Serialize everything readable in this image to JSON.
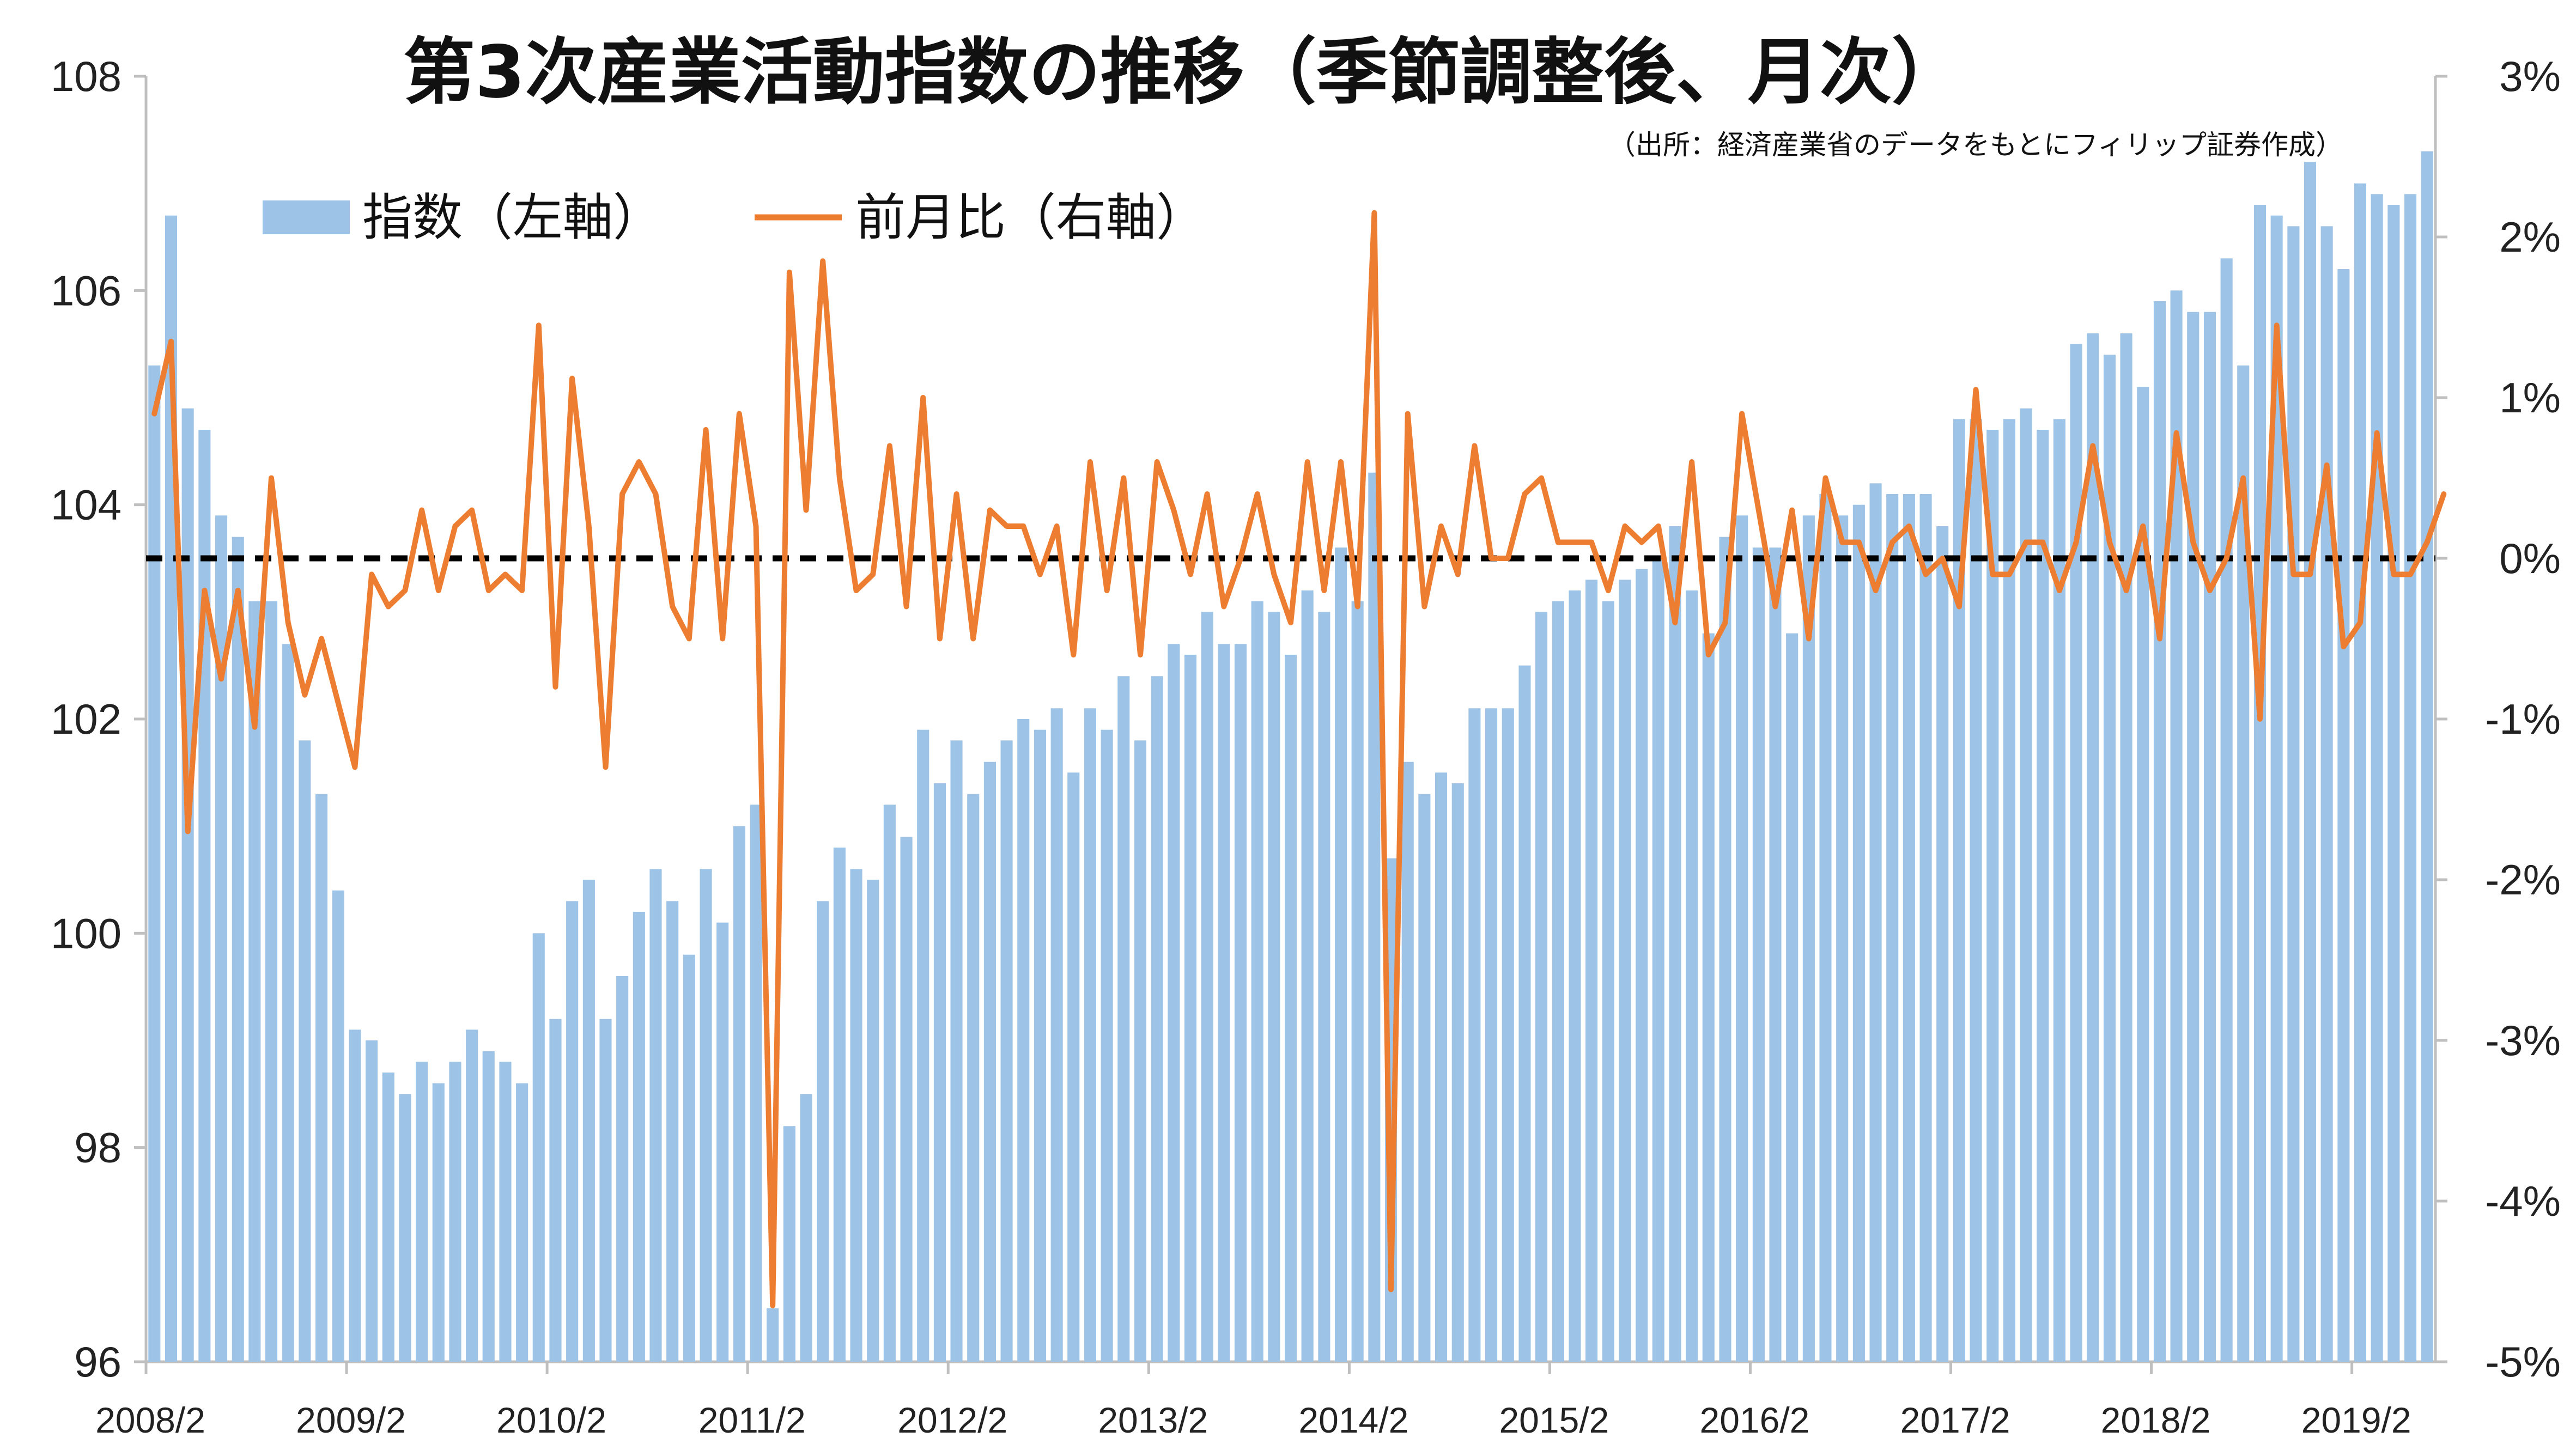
{
  "chart_data": {
    "type": "bar+line",
    "title": "第3次産業活動指数の推移（季節調整後、月次）",
    "source": "（出所：経済産業省のデータをもとにフィリップ証券作成）",
    "legend": {
      "placement": "top-left",
      "items": [
        {
          "label": "指数（左軸）",
          "kind": "bar"
        },
        {
          "label": "前月比（右軸）",
          "kind": "line"
        }
      ]
    },
    "x_tick_labels": [
      "2008/2",
      "2009/2",
      "2010/2",
      "2011/2",
      "2012/2",
      "2013/2",
      "2014/2",
      "2015/2",
      "2016/2",
      "2017/2",
      "2018/2",
      "2019/2"
    ],
    "left_axis": {
      "min": 96,
      "max": 108,
      "step": 2,
      "ticks": [
        "96",
        "98",
        "100",
        "102",
        "104",
        "106",
        "108"
      ]
    },
    "right_axis": {
      "min": -5,
      "max": 3,
      "step": 1,
      "ticks": [
        "-5%",
        "-4%",
        "-3%",
        "-2%",
        "-1%",
        "0%",
        "1%",
        "2%",
        "3%"
      ]
    },
    "zero_line": {
      "value": 0,
      "style": "dashed"
    },
    "colors": {
      "bar": "#9dc3e6",
      "line": "#ed7d31",
      "axis": "#bfbfbf",
      "zero_line": "#000000"
    },
    "series": [
      {
        "name": "指数（左軸）",
        "axis": "left",
        "values": [
          105.3,
          106.7,
          104.9,
          104.7,
          103.9,
          103.7,
          103.1,
          103.1,
          102.7,
          101.8,
          101.3,
          100.4,
          99.1,
          99.0,
          98.7,
          98.5,
          98.8,
          98.6,
          98.8,
          99.1,
          98.9,
          98.8,
          98.6,
          100.0,
          99.2,
          100.3,
          100.5,
          99.2,
          99.6,
          100.2,
          100.6,
          100.3,
          99.8,
          100.6,
          100.1,
          101.0,
          101.2,
          96.5,
          98.2,
          98.5,
          100.3,
          100.8,
          100.6,
          100.5,
          101.2,
          100.9,
          101.9,
          101.4,
          101.8,
          101.3,
          101.6,
          101.8,
          102.0,
          101.9,
          102.1,
          101.5,
          102.1,
          101.9,
          102.4,
          101.8,
          102.4,
          102.7,
          102.6,
          103.0,
          102.7,
          102.7,
          103.1,
          103.0,
          102.6,
          103.2,
          103.0,
          103.6,
          103.1,
          104.3,
          100.7,
          101.6,
          101.3,
          101.5,
          101.4,
          102.1,
          102.1,
          102.1,
          102.5,
          103.0,
          103.1,
          103.2,
          103.3,
          103.1,
          103.3,
          103.4,
          103.5,
          103.8,
          103.2,
          102.8,
          103.7,
          103.9,
          103.6,
          103.6,
          102.8,
          103.9,
          104.1,
          103.9,
          104.0,
          104.2,
          104.1,
          104.1,
          104.1,
          103.8,
          104.8,
          104.8,
          104.7,
          104.8,
          104.9,
          104.7,
          104.8,
          105.5,
          105.6,
          105.4,
          105.6,
          105.1,
          105.9,
          106.0,
          105.8,
          105.8,
          106.3,
          105.3,
          106.8,
          106.7,
          106.6,
          107.2,
          106.6,
          106.2,
          107.0,
          106.9,
          106.8,
          106.9,
          107.3
        ]
      },
      {
        "name": "前月比（右軸）",
        "axis": "right",
        "values": [
          0.9,
          1.35,
          -1.7,
          -0.2,
          -0.75,
          -0.2,
          -1.05,
          0.5,
          -0.4,
          -0.85,
          -0.5,
          -0.9,
          -1.3,
          -0.1,
          -0.3,
          -0.2,
          0.3,
          -0.2,
          0.2,
          0.3,
          -0.2,
          -0.1,
          -0.2,
          1.45,
          -0.8,
          1.12,
          0.2,
          -1.3,
          0.4,
          0.6,
          0.4,
          -0.3,
          -0.5,
          0.8,
          -0.5,
          0.9,
          0.2,
          -4.65,
          1.78,
          0.3,
          1.85,
          0.5,
          -0.2,
          -0.1,
          0.7,
          -0.3,
          1.0,
          -0.5,
          0.4,
          -0.5,
          0.3,
          0.2,
          0.2,
          -0.1,
          0.2,
          -0.6,
          0.6,
          -0.2,
          0.5,
          -0.6,
          0.6,
          0.3,
          -0.1,
          0.4,
          -0.3,
          0.0,
          0.4,
          -0.1,
          -0.4,
          0.6,
          -0.2,
          0.6,
          -0.3,
          2.15,
          -4.55,
          0.9,
          -0.3,
          0.2,
          -0.1,
          0.7,
          0.0,
          0.0,
          0.4,
          0.5,
          0.1,
          0.1,
          0.1,
          -0.2,
          0.2,
          0.1,
          0.2,
          -0.4,
          0.6,
          -0.6,
          -0.4,
          0.9,
          0.3,
          -0.3,
          0.3,
          -0.5,
          0.5,
          0.1,
          0.1,
          -0.2,
          0.1,
          0.2,
          -0.1,
          0.0,
          -0.3,
          1.05,
          -0.1,
          -0.1,
          0.1,
          0.1,
          -0.2,
          0.1,
          0.7,
          0.1,
          -0.2,
          0.2,
          -0.5,
          0.78,
          0.1,
          -0.2,
          0.0,
          0.5,
          -1.0,
          1.45,
          -0.1,
          -0.1,
          0.58,
          -0.55,
          -0.4,
          0.78,
          -0.1,
          -0.1,
          0.1,
          0.4
        ]
      }
    ]
  }
}
